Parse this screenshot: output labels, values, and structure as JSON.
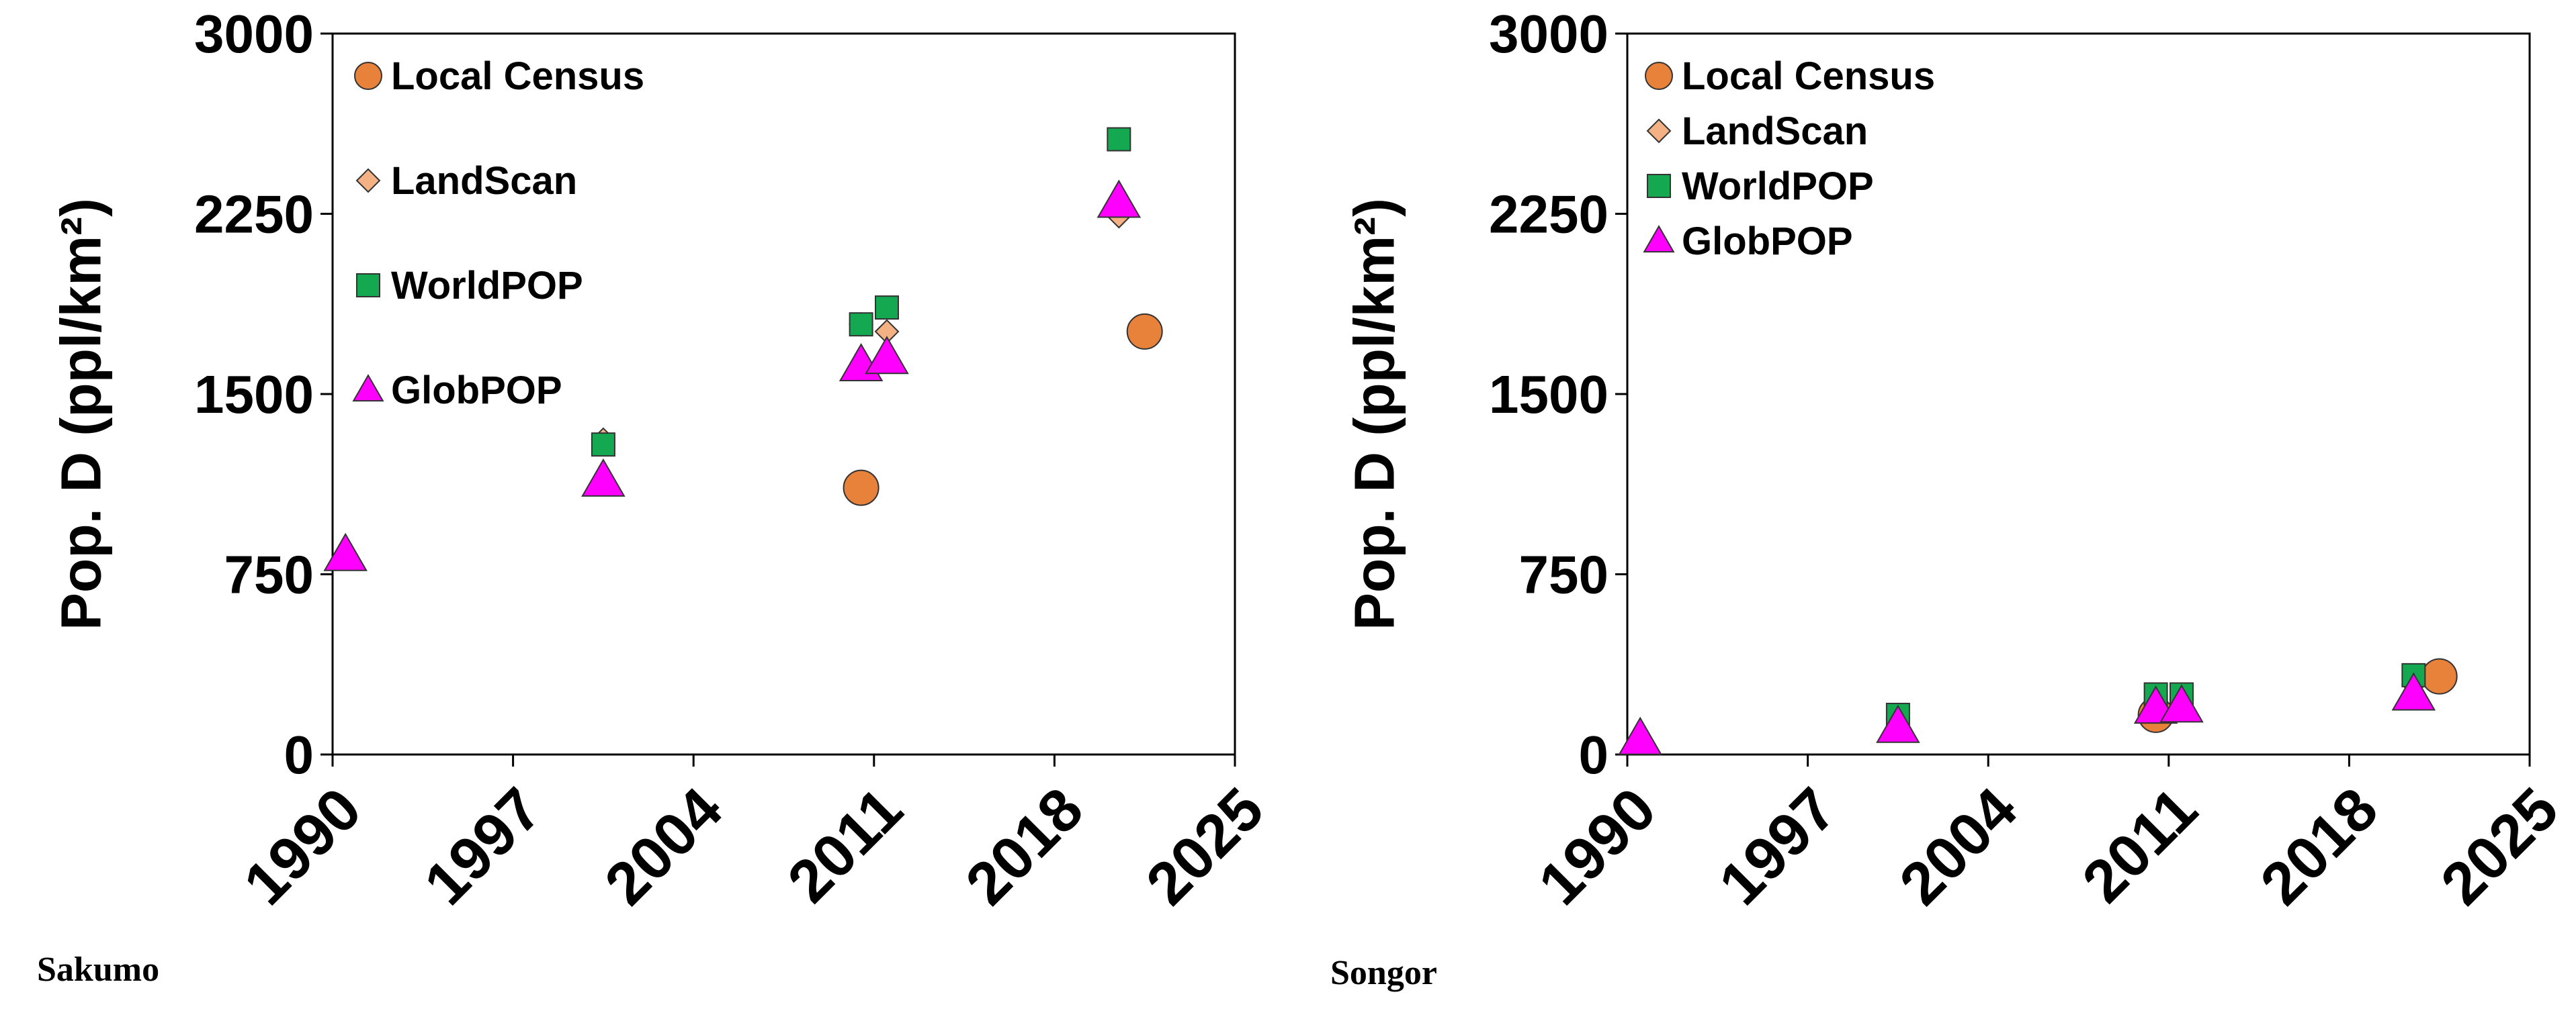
{
  "chart_data": [
    {
      "type": "scatter",
      "caption": "Sakumo",
      "ylabel": "Pop. D (ppl/km²)",
      "xlim": [
        1990,
        2025
      ],
      "ylim": [
        0,
        3000
      ],
      "xticks": [
        "1990",
        "1997",
        "2004",
        "2011",
        "2018",
        "2025"
      ],
      "yticks": [
        "0",
        "750",
        "1500",
        "2250",
        "3000"
      ],
      "legend_placement": "top-left",
      "series": [
        {
          "name": "Local Census",
          "marker": "circle",
          "color": "#E8823A",
          "points": [
            [
              2010.5,
              1110
            ],
            [
              2021.5,
              1760
            ]
          ]
        },
        {
          "name": "LandScan",
          "marker": "diamond",
          "color": "#F4B183",
          "points": [
            [
              2000.5,
              1310
            ],
            [
              2010.5,
              1790
            ],
            [
              2011.5,
              1760
            ],
            [
              2020.5,
              2240
            ]
          ]
        },
        {
          "name": "WorldPOP",
          "marker": "square",
          "color": "#14A850",
          "points": [
            [
              2000.5,
              1290
            ],
            [
              2010.5,
              1790
            ],
            [
              2011.5,
              1860
            ],
            [
              2020.5,
              2560
            ]
          ]
        },
        {
          "name": "GlobPOP",
          "marker": "triangle",
          "color": "#FF00FF",
          "points": [
            [
              1990.5,
              830
            ],
            [
              2000.5,
              1140
            ],
            [
              2010.5,
              1620
            ],
            [
              2011.5,
              1650
            ],
            [
              2020.5,
              2300
            ]
          ]
        }
      ]
    },
    {
      "type": "scatter",
      "caption": "Songor",
      "ylabel": "Pop. D (ppl/km²)",
      "xlim": [
        1990,
        2025
      ],
      "ylim": [
        0,
        3000
      ],
      "xticks": [
        "1990",
        "1997",
        "2004",
        "2011",
        "2018",
        "2025"
      ],
      "yticks": [
        "0",
        "750",
        "1500",
        "2250",
        "3000"
      ],
      "legend_placement": "top-left",
      "series": [
        {
          "name": "Local Census",
          "marker": "circle",
          "color": "#E8823A",
          "points": [
            [
              2010.5,
              165
            ],
            [
              2021.5,
              325
            ]
          ]
        },
        {
          "name": "LandScan",
          "marker": "diamond",
          "color": "#F4B183",
          "points": [
            [
              2000.5,
              150
            ],
            [
              2010.5,
              220
            ],
            [
              2011.5,
              230
            ],
            [
              2020.5,
              290
            ]
          ]
        },
        {
          "name": "WorldPOP",
          "marker": "square",
          "color": "#14A850",
          "points": [
            [
              2000.5,
              165
            ],
            [
              2010.5,
              250
            ],
            [
              2011.5,
              250
            ],
            [
              2020.5,
              330
            ]
          ]
        },
        {
          "name": "GlobPOP",
          "marker": "triangle",
          "color": "#FF00FF",
          "points": [
            [
              1990.5,
              65
            ],
            [
              2000.5,
              115
            ],
            [
              2010.5,
              195
            ],
            [
              2011.5,
              200
            ],
            [
              2020.5,
              250
            ]
          ]
        }
      ]
    }
  ]
}
